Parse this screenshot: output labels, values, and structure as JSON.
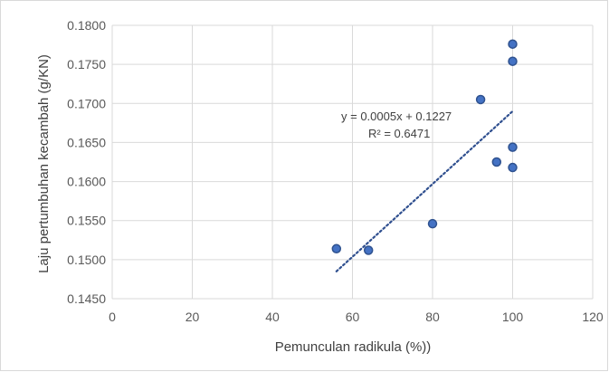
{
  "chart_data": {
    "type": "scatter",
    "xlabel": "Pemunculan radikula (%))",
    "ylabel": "Laju pertumbuhan kecambah (g/KN)",
    "xlim": [
      0,
      120
    ],
    "ylim": [
      0.145,
      0.18
    ],
    "x_ticks": [
      "0",
      "20",
      "40",
      "60",
      "80",
      "100",
      "120"
    ],
    "y_ticks": [
      "0.1450",
      "0.1500",
      "0.1550",
      "0.1600",
      "0.1650",
      "0.1700",
      "0.1750",
      "0.1800"
    ],
    "grid": true,
    "points": [
      {
        "x": 56,
        "y": 0.1514
      },
      {
        "x": 64,
        "y": 0.1512
      },
      {
        "x": 80,
        "y": 0.1546
      },
      {
        "x": 92,
        "y": 0.1705
      },
      {
        "x": 96,
        "y": 0.1625
      },
      {
        "x": 100,
        "y": 0.1776
      },
      {
        "x": 100,
        "y": 0.1754
      },
      {
        "x": 100,
        "y": 0.1644
      },
      {
        "x": 100,
        "y": 0.1618
      }
    ],
    "trendline": {
      "x_start": 56,
      "x_end": 100,
      "y_start": 0.1485,
      "y_end": 0.169,
      "style": "dotted",
      "equation": "y = 0.0005x + 0.1227",
      "r_squared": "R² = 0.6471"
    },
    "colors": {
      "marker_fill": "#4472c4",
      "marker_stroke": "#2f528f",
      "trendline": "#2f4f8f",
      "grid": "#d9d9d9"
    }
  }
}
